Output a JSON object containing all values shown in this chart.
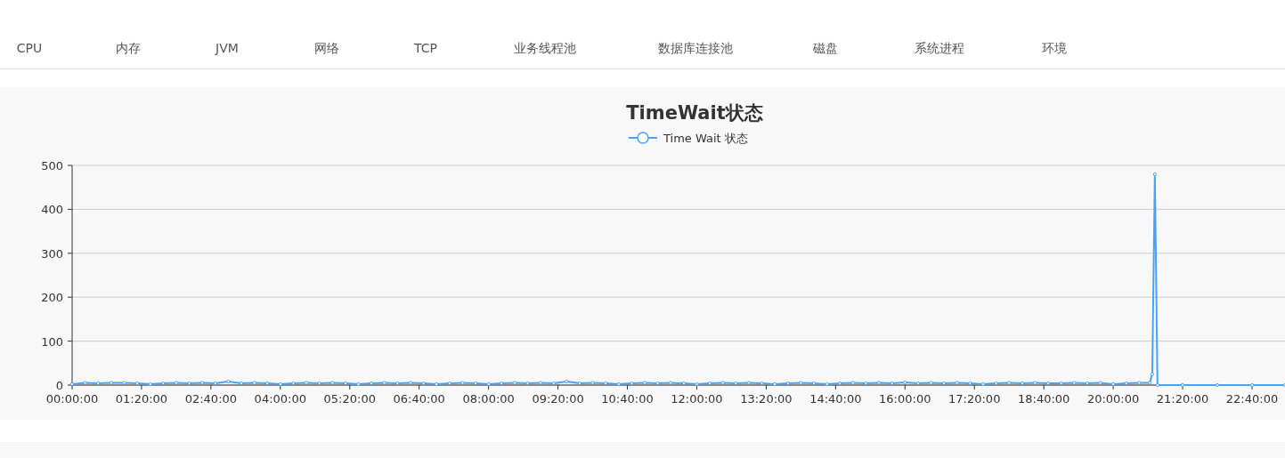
{
  "chart_data": {
    "type": "line",
    "title": "TimeWait状态",
    "annotations": [
      "CPU",
      "内存",
      "JVM",
      "网络",
      "TCP",
      "业务线程池",
      "数据库连接池",
      "磁盘",
      "系统进程",
      "环境"
    ],
    "x": [
      0,
      0.25,
      0.5,
      0.75,
      1,
      1.25,
      1.5,
      1.75,
      2,
      2.25,
      2.5,
      2.75,
      3,
      3.25,
      3.5,
      3.75,
      4,
      4.25,
      4.5,
      4.75,
      5,
      5.25,
      5.5,
      5.75,
      6,
      6.25,
      6.5,
      6.75,
      7,
      7.25,
      7.5,
      7.75,
      8,
      8.25,
      8.5,
      8.75,
      9,
      9.25,
      9.5,
      9.75,
      10,
      10.25,
      10.5,
      10.75,
      11,
      11.25,
      11.5,
      11.75,
      12,
      12.25,
      12.5,
      12.75,
      13,
      13.25,
      13.5,
      13.75,
      14,
      14.25,
      14.5,
      14.75,
      15,
      15.25,
      15.5,
      15.75,
      16,
      16.25,
      16.5,
      16.75,
      17,
      17.25,
      17.5,
      17.75,
      18,
      18.25,
      18.5,
      18.75,
      19,
      19.25,
      19.5,
      19.75,
      20,
      20.25,
      20.5,
      20.7,
      20.75,
      20.8,
      20.85,
      21.33,
      22,
      22.67,
      23.3
    ],
    "series": [
      {
        "name": "Time Wait 状态",
        "color": "#4ba2f5",
        "values": [
          2,
          5,
          4,
          5,
          5,
          4,
          2,
          4,
          5,
          4,
          5,
          4,
          8,
          4,
          5,
          4,
          2,
          4,
          5,
          4,
          5,
          4,
          2,
          4,
          5,
          4,
          5,
          4,
          2,
          4,
          5,
          4,
          2,
          4,
          5,
          4,
          5,
          4,
          8,
          4,
          5,
          4,
          2,
          4,
          5,
          4,
          5,
          4,
          2,
          4,
          5,
          4,
          5,
          4,
          2,
          4,
          5,
          4,
          2,
          4,
          5,
          4,
          5,
          4,
          6,
          4,
          5,
          4,
          5,
          4,
          2,
          4,
          5,
          4,
          5,
          4,
          4,
          5,
          4,
          5,
          2,
          4,
          5,
          5,
          25,
          480,
          0,
          0,
          0,
          0,
          0
        ]
      }
    ],
    "xlim": [
      0,
      23.3
    ],
    "xticks": [
      {
        "value": 0,
        "label": "00:00:00"
      },
      {
        "value": 1.3333,
        "label": "01:20:00"
      },
      {
        "value": 2.6667,
        "label": "02:40:00"
      },
      {
        "value": 4,
        "label": "04:00:00"
      },
      {
        "value": 5.3333,
        "label": "05:20:00"
      },
      {
        "value": 6.6667,
        "label": "06:40:00"
      },
      {
        "value": 8,
        "label": "08:00:00"
      },
      {
        "value": 9.3333,
        "label": "09:20:00"
      },
      {
        "value": 10.6667,
        "label": "10:40:00"
      },
      {
        "value": 12,
        "label": "12:00:00"
      },
      {
        "value": 13.3333,
        "label": "13:20:00"
      },
      {
        "value": 14.6667,
        "label": "14:40:00"
      },
      {
        "value": 16,
        "label": "16:00:00"
      },
      {
        "value": 17.3333,
        "label": "17:20:00"
      },
      {
        "value": 18.6667,
        "label": "18:40:00"
      },
      {
        "value": 20,
        "label": "20:00:00"
      },
      {
        "value": 21.3333,
        "label": "21:20:00"
      },
      {
        "value": 22.6667,
        "label": "22:40:00"
      }
    ],
    "ylim": [
      0,
      500
    ],
    "yticks": [
      0,
      100,
      200,
      300,
      400,
      500
    ],
    "grid": "y",
    "legend": "top",
    "marker": "circle",
    "line_style": "solid"
  }
}
